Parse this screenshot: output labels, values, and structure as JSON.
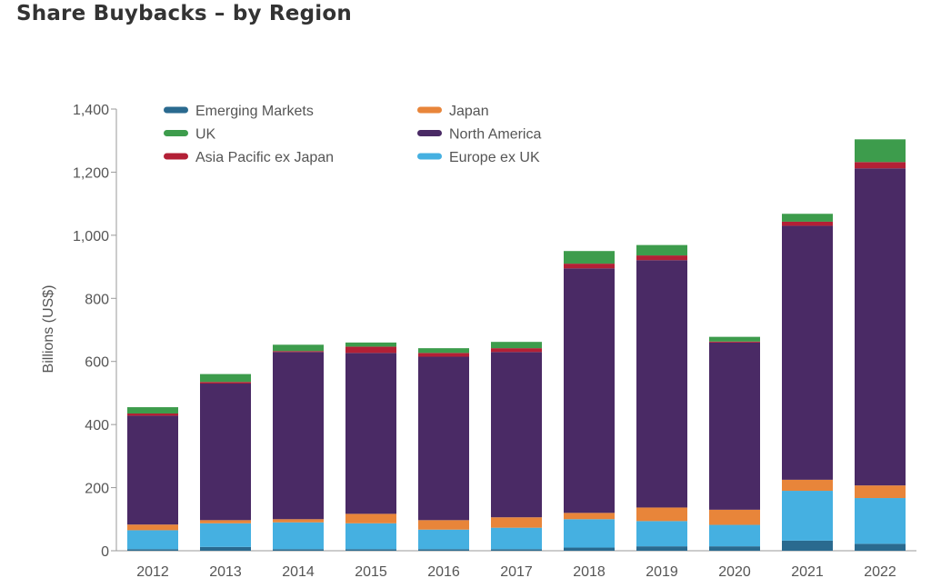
{
  "page": {
    "title": "Share Buybacks – by Region"
  },
  "chart_data": {
    "type": "bar",
    "stacked": true,
    "categories": [
      "2012",
      "2013",
      "2014",
      "2015",
      "2016",
      "2017",
      "2018",
      "2019",
      "2020",
      "2021",
      "2022"
    ],
    "series": [
      {
        "name": "Emerging Markets",
        "color": "#2a6a8f",
        "values": [
          5,
          12,
          5,
          5,
          5,
          5,
          10,
          14,
          14,
          32,
          22
        ]
      },
      {
        "name": "Europe ex UK",
        "color": "#45b0e1",
        "values": [
          60,
          75,
          85,
          82,
          62,
          68,
          90,
          80,
          68,
          158,
          145
        ]
      },
      {
        "name": "Japan",
        "color": "#e8853a",
        "values": [
          18,
          10,
          10,
          30,
          30,
          33,
          20,
          43,
          48,
          35,
          40
        ]
      },
      {
        "name": "North America",
        "color": "#4a2a65",
        "values": [
          345,
          433,
          530,
          510,
          518,
          524,
          775,
          784,
          530,
          805,
          1005
        ]
      },
      {
        "name": "Asia Pacific ex Japan",
        "color": "#b32036",
        "values": [
          7,
          5,
          3,
          20,
          12,
          12,
          15,
          15,
          3,
          13,
          20
        ]
      },
      {
        "name": "UK",
        "color": "#3d9c4c",
        "values": [
          20,
          25,
          20,
          13,
          15,
          20,
          40,
          33,
          15,
          25,
          72
        ]
      }
    ],
    "ylabel": "Billions (US$)",
    "xlabel": "",
    "ylim": [
      0,
      1400
    ],
    "yticks": [
      0,
      200,
      400,
      600,
      800,
      1000,
      1200,
      1400
    ],
    "ytick_labels": [
      "0",
      "200",
      "400",
      "600",
      "800",
      "1,000",
      "1,200",
      "1,400"
    ],
    "legend_order": [
      "Emerging Markets",
      "Japan",
      "UK",
      "North America",
      "Asia Pacific ex Japan",
      "Europe ex UK"
    ],
    "legend_position": "top-left",
    "grid": false
  }
}
